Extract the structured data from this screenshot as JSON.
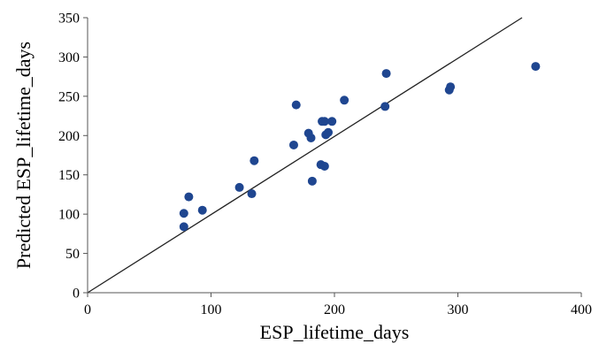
{
  "chart_data": {
    "type": "scatter",
    "title": "",
    "xlabel": "ESP_lifetime_days",
    "ylabel": "Predicted ESP_lifetime_days",
    "xlim": [
      0,
      400
    ],
    "ylim": [
      0,
      350
    ],
    "xticks": [
      0,
      100,
      200,
      300,
      400
    ],
    "yticks": [
      0,
      50,
      100,
      150,
      200,
      250,
      300,
      350
    ],
    "xtick_labels": [
      "0",
      "100",
      "200",
      "300",
      "400"
    ],
    "ytick_labels": [
      "0",
      "50",
      "100",
      "150",
      "200",
      "250",
      "300",
      "350"
    ],
    "grid": false,
    "legend": "none",
    "reference_line": {
      "x": [
        0,
        352
      ],
      "y": [
        0,
        350
      ]
    },
    "colors": {
      "points": "#1f4690",
      "line": "#222222",
      "axes": "#555555"
    },
    "series": [
      {
        "x": [
          78,
          78,
          82,
          93,
          123,
          133,
          135,
          167,
          169,
          179,
          181,
          182,
          189,
          190,
          192,
          192,
          193,
          195,
          198,
          208,
          241,
          242,
          293,
          294,
          363
        ],
        "y": [
          84,
          101,
          122,
          105,
          134,
          126,
          168,
          188,
          239,
          203,
          197,
          142,
          163,
          218,
          161,
          218,
          201,
          204,
          218,
          245,
          237,
          279,
          258,
          262,
          288
        ]
      }
    ]
  }
}
